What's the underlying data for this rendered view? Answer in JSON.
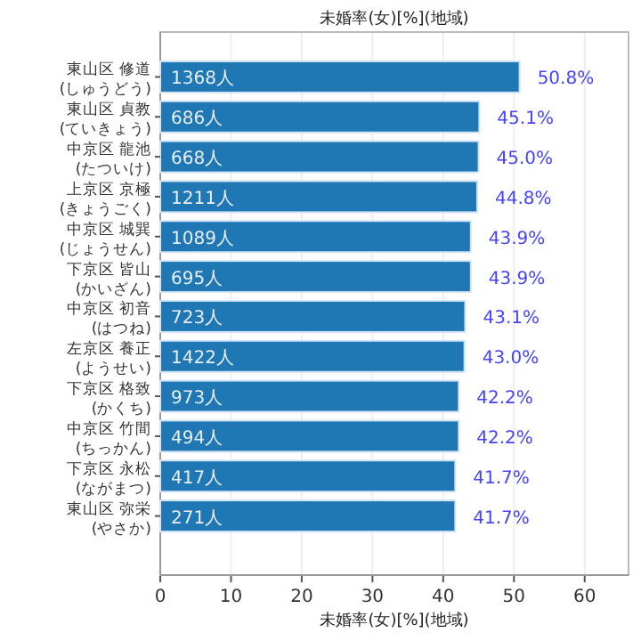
{
  "chart_data": {
    "type": "bar",
    "orientation": "horizontal",
    "title": "未婚率(女)[%](地域)",
    "xlabel": "未婚率(女)[%](地域)",
    "categories": [
      "東山区 修道\n(しゅうどう)",
      "東山区 貞教\n(ていきょう)",
      "中京区 龍池\n(たついけ)",
      "上京区 京極\n(きょうごく)",
      "中京区 城巽\n(じょうせん)",
      "下京区 皆山\n(かいざん)",
      "中京区 初音\n(はつね)",
      "左京区 養正\n(ようせい)",
      "下京区 格致\n(かくち)",
      "中京区 竹間\n(ちっかん)",
      "下京区 永松\n(ながまつ)",
      "東山区 弥栄\n(やさか)"
    ],
    "series": [
      {
        "color": "#1f77b4",
        "values": [
          50.8,
          45.1,
          45.0,
          44.8,
          43.9,
          43.9,
          43.1,
          43.0,
          42.2,
          42.2,
          41.7,
          41.7
        ],
        "value_labels": [
          "50.8%",
          "45.1%",
          "45.0%",
          "44.8%",
          "43.9%",
          "43.9%",
          "43.1%",
          "43.0%",
          "42.2%",
          "42.2%",
          "41.7%",
          "41.7%"
        ]
      }
    ],
    "annotations": [
      {
        "text": "1368人",
        "y": "東山区 修道\n(しゅうどう)"
      },
      {
        "text": "686人",
        "y": "東山区 貞教\n(ていきょう)"
      },
      {
        "text": "668人",
        "y": "中京区 龍池\n(たついけ)"
      },
      {
        "text": "1211人",
        "y": "上京区 京極\n(きょうごく)"
      },
      {
        "text": "1089人",
        "y": "中京区 城巽\n(じょうせん)"
      },
      {
        "text": "695人",
        "y": "下京区 皆山\n(かいざん)"
      },
      {
        "text": "723人",
        "y": "中京区 初音\n(はつね)"
      },
      {
        "text": "1422人",
        "y": "左京区 養正\n(ようせい)"
      },
      {
        "text": "973人",
        "y": "下京区 格致\n(かくち)"
      },
      {
        "text": "494人",
        "y": "中京区 竹間\n(ちっかん)"
      },
      {
        "text": "417人",
        "y": "下京区 永松\n(ながまつ)"
      },
      {
        "text": "271人",
        "y": "東山区 弥栄\n(やさか)"
      }
    ],
    "xlim": [
      0,
      66.2
    ],
    "xticks": [
      0,
      10,
      20,
      30,
      40,
      50,
      60
    ],
    "grid": "x"
  }
}
